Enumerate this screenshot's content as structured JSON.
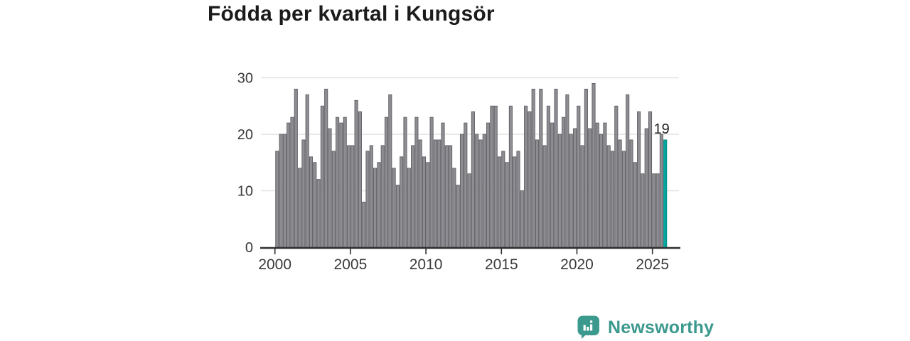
{
  "title": "Födda per kvartal i Kungsör",
  "footer": {
    "brand": "Newsworthy"
  },
  "colors": {
    "bar": "#8d8d92",
    "bar_edge": "#5e5e64",
    "highlight": "#00a7a0",
    "highlight_edge": "#008a84",
    "grid": "#e2e2e2",
    "axis": "#2f2f2f",
    "tick_label": "#3a3a3a",
    "annotation": "#1e1e1e",
    "logo": "#3c998d"
  },
  "chart_data": {
    "type": "bar",
    "title": "Födda per kvartal i Kungsör",
    "xlabel": "",
    "ylabel": "",
    "frequency": "quarterly",
    "x_start": "2000-Q1",
    "x_end": "2025-Q4",
    "ylim": [
      0,
      30
    ],
    "grid": true,
    "y_ticks": [
      0,
      10,
      20,
      30
    ],
    "x_ticks": [
      2000,
      2005,
      2010,
      2015,
      2020,
      2025
    ],
    "series": [
      {
        "name": "Födda per kvartal",
        "values": [
          17,
          20,
          20,
          22,
          23,
          28,
          14,
          19,
          27,
          16,
          15,
          12,
          25,
          28,
          21,
          17,
          23,
          22,
          23,
          18,
          18,
          26,
          24,
          8,
          17,
          18,
          14,
          15,
          18,
          23,
          27,
          14,
          11,
          16,
          23,
          14,
          18,
          23,
          19,
          16,
          15,
          23,
          19,
          19,
          22,
          18,
          18,
          14,
          11,
          20,
          22,
          13,
          24,
          20,
          19,
          20,
          22,
          25,
          25,
          16,
          17,
          15,
          25,
          16,
          17,
          10,
          25,
          24,
          28,
          19,
          28,
          18,
          25,
          22,
          28,
          20,
          23,
          27,
          20,
          21,
          25,
          18,
          28,
          21,
          29,
          22,
          20,
          22,
          18,
          17,
          25,
          19,
          17,
          27,
          19,
          15,
          24,
          13,
          21,
          24,
          13,
          13,
          20,
          19
        ]
      }
    ],
    "highlight": {
      "index": 103,
      "value": 19,
      "label": "19"
    }
  }
}
